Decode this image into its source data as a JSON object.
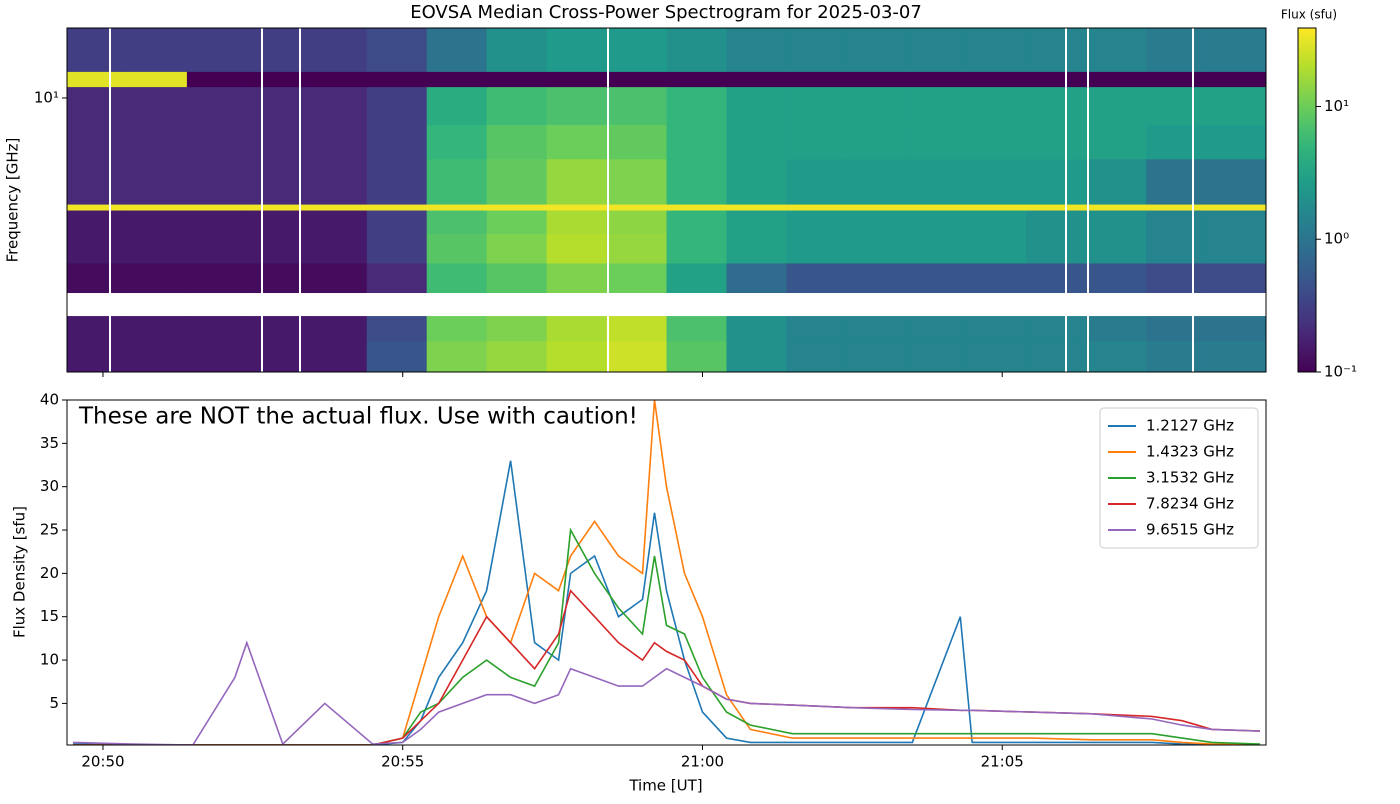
{
  "chart_data": [
    {
      "type": "heatmap",
      "title": "EOVSA Median Cross-Power Spectrogram for 2025-03-07",
      "y_label": "Frequency [GHz]",
      "colorbar_label": "Flux (sfu)",
      "colormap": "viridis",
      "log_y": true,
      "log_color": true,
      "xlim": [
        1249.4,
        1269.4
      ],
      "xticks": [
        1250,
        1255,
        1260,
        1265
      ],
      "ylim": [
        1,
        18
      ],
      "yticks": [
        {
          "value": 10,
          "label": "10¹"
        }
      ],
      "clim": [
        0.1,
        39
      ],
      "cticks": [
        {
          "value": 0.1,
          "label": "10⁻¹"
        },
        {
          "value": 1,
          "label": "10⁰"
        },
        {
          "value": 10,
          "label": "10¹"
        }
      ],
      "x_edges": [
        1249.4,
        1250.4,
        1251.4,
        1252.4,
        1253.4,
        1254.4,
        1255.4,
        1256.4,
        1257.4,
        1258.4,
        1259.4,
        1260.4,
        1261.4,
        1262.4,
        1263.4,
        1264.4,
        1265.4,
        1266.4,
        1267.4,
        1268.4,
        1269.4
      ],
      "y_edges": [
        1,
        1.3,
        1.6,
        1.95,
        2.5,
        3.2,
        3.9,
        4.1,
        6,
        8,
        11,
        12.5,
        18
      ],
      "values": [
        [
          0.15,
          0.15,
          0.15,
          0.15,
          0.15,
          0.5,
          12,
          15,
          20,
          25,
          8,
          2,
          1.5,
          1.5,
          1.5,
          1.5,
          1.5,
          1.5,
          1.2,
          1.2
        ],
        [
          0.15,
          0.15,
          0.15,
          0.15,
          0.15,
          0.4,
          10,
          12,
          18,
          22,
          7,
          2,
          1.5,
          1.5,
          1.5,
          1.5,
          1.5,
          1.2,
          1,
          1
        ],
        [
          null,
          null,
          null,
          null,
          null,
          null,
          null,
          null,
          null,
          null,
          null,
          null,
          null,
          null,
          null,
          null,
          null,
          null,
          null,
          null
        ],
        [
          0.12,
          0.12,
          0.12,
          0.12,
          0.12,
          0.2,
          6,
          8,
          12,
          10,
          3,
          0.8,
          0.5,
          0.5,
          0.5,
          0.5,
          0.5,
          0.5,
          0.4,
          0.4
        ],
        [
          0.15,
          0.15,
          0.15,
          0.15,
          0.15,
          0.3,
          8,
          12,
          20,
          15,
          5,
          3,
          2.5,
          2.5,
          2.5,
          2.5,
          2,
          2,
          1.5,
          1.5
        ],
        [
          0.15,
          0.15,
          0.15,
          0.15,
          0.15,
          0.3,
          7,
          10,
          18,
          14,
          5,
          3,
          2.5,
          2.5,
          2.5,
          2.5,
          2,
          2,
          1.5,
          1.5
        ],
        [
          35,
          35,
          35,
          35,
          35,
          35,
          35,
          35,
          35,
          35,
          35,
          35,
          35,
          35,
          35,
          35,
          35,
          35,
          35,
          35
        ],
        [
          0.2,
          0.2,
          0.2,
          0.2,
          0.2,
          0.3,
          6,
          9,
          15,
          12,
          5,
          3,
          2.5,
          2.5,
          2.5,
          2.5,
          2.5,
          2,
          1,
          1
        ],
        [
          0.2,
          0.2,
          0.2,
          0.2,
          0.2,
          0.3,
          5,
          8,
          10,
          9,
          5,
          3,
          3,
          3,
          3,
          3,
          3,
          3,
          2.5,
          2.5
        ],
        [
          0.2,
          0.2,
          0.2,
          0.2,
          0.2,
          0.3,
          4,
          6,
          7,
          7,
          5,
          3,
          3,
          3,
          3,
          3,
          3,
          3,
          3,
          3
        ],
        [
          30,
          30,
          0.1,
          0.1,
          0.1,
          0.1,
          0.1,
          0.1,
          0.1,
          0.1,
          0.1,
          0.1,
          0.1,
          0.1,
          0.1,
          0.1,
          0.1,
          0.1,
          0.1,
          0.1
        ],
        [
          0.3,
          0.3,
          0.3,
          0.3,
          0.3,
          0.4,
          1,
          2,
          2.5,
          2.5,
          2,
          1.5,
          1.5,
          1.5,
          1.5,
          1.5,
          1.5,
          1.5,
          1.2,
          1.2
        ]
      ]
    },
    {
      "type": "line",
      "annotation": "These are NOT the actual flux. Use with caution!",
      "x_label": "Time [UT]",
      "y_label": "Flux Density [sfu]",
      "legend": "upper right",
      "xlim": [
        1249.4,
        1269.4
      ],
      "xticks": [
        {
          "value": 1250,
          "label": "20:50"
        },
        {
          "value": 1255,
          "label": "20:55"
        },
        {
          "value": 1260,
          "label": "21:00"
        },
        {
          "value": 1265,
          "label": "21:05"
        }
      ],
      "ylim": [
        0.2,
        40
      ],
      "yticks": [
        5,
        10,
        15,
        20,
        25,
        30,
        35,
        40
      ],
      "x": [
        1249.5,
        1250.5,
        1251.5,
        1252.2,
        1252.4,
        1253.0,
        1253.7,
        1254.5,
        1255.0,
        1255.3,
        1255.6,
        1256.0,
        1256.4,
        1256.8,
        1257.2,
        1257.6,
        1257.8,
        1258.2,
        1258.6,
        1259.0,
        1259.2,
        1259.4,
        1259.7,
        1260.0,
        1260.4,
        1260.8,
        1261.5,
        1262.5,
        1263.5,
        1264.3,
        1264.5,
        1265.5,
        1266.5,
        1267.5,
        1268.0,
        1268.5,
        1269.3
      ],
      "series": [
        {
          "name": "1.2127 GHz",
          "color": "#1f77b4",
          "values": [
            0.3,
            0.2,
            0.2,
            0.2,
            0.2,
            0.2,
            0.2,
            0.2,
            0.5,
            3,
            8,
            12,
            18,
            33,
            12,
            10,
            20,
            22,
            15,
            17,
            27,
            18,
            10,
            4,
            1,
            0.5,
            0.5,
            0.5,
            0.5,
            15,
            0.5,
            0.5,
            0.5,
            0.5,
            0.3,
            0.2,
            0.2
          ]
        },
        {
          "name": "1.4323 GHz",
          "color": "#ff7f0e",
          "values": [
            0.2,
            0.2,
            0.2,
            0.2,
            0.2,
            0.2,
            0.2,
            0.2,
            1,
            8,
            15,
            22,
            15,
            12,
            20,
            18,
            22,
            26,
            22,
            20,
            40,
            30,
            20,
            15,
            6,
            2,
            1,
            1,
            1,
            1,
            1,
            1,
            0.8,
            0.8,
            0.5,
            0.3,
            0.2
          ]
        },
        {
          "name": "3.1532 GHz",
          "color": "#2ca02c",
          "values": [
            0.2,
            0.2,
            0.2,
            0.2,
            0.2,
            0.2,
            0.2,
            0.2,
            1,
            4,
            5,
            8,
            10,
            8,
            7,
            12,
            25,
            20,
            16,
            13,
            22,
            14,
            13,
            8,
            4,
            2.5,
            1.5,
            1.5,
            1.5,
            1.5,
            1.5,
            1.5,
            1.5,
            1.5,
            1,
            0.5,
            0.3
          ]
        },
        {
          "name": "7.8234 GHz",
          "color": "#d62728",
          "values": [
            0.2,
            0.2,
            0.2,
            0.2,
            0.2,
            0.2,
            0.2,
            0.2,
            1,
            3,
            5,
            10,
            15,
            12,
            9,
            13,
            18,
            15,
            12,
            10,
            12,
            11,
            10,
            7,
            5.5,
            5,
            4.8,
            4.5,
            4.5,
            4.2,
            4.2,
            4,
            3.8,
            3.5,
            3,
            2,
            1.8
          ]
        },
        {
          "name": "9.6515 GHz",
          "color": "#9467bd",
          "values": [
            0.5,
            0.3,
            0.2,
            8,
            12,
            0.3,
            5,
            0.3,
            0.5,
            2,
            4,
            5,
            6,
            6,
            5,
            6,
            9,
            8,
            7,
            7,
            8,
            9,
            8,
            7,
            5.5,
            5,
            4.8,
            4.5,
            4.3,
            4.2,
            4.2,
            4,
            3.8,
            3.2,
            2.5,
            2,
            1.8
          ]
        }
      ]
    }
  ]
}
